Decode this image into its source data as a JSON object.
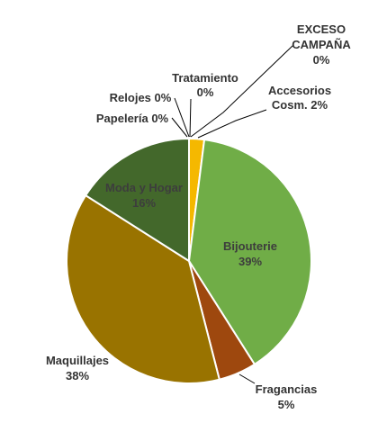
{
  "chart_data": {
    "type": "pie",
    "title": "",
    "start_angle_deg": 0,
    "direction": "clockwise",
    "slices": [
      {
        "key": "exceso",
        "lines": [
          "EXCESO",
          "CAMPAÑA",
          "0%"
        ],
        "value": 0.0,
        "color": "#c0c0c0"
      },
      {
        "key": "accesorios",
        "lines": [
          "Accesorios",
          "Cosm. 2%"
        ],
        "value": 2,
        "color": "#f5b800"
      },
      {
        "key": "bijouterie",
        "lines": [
          "Bijouterie",
          "39%"
        ],
        "value": 39,
        "color": "#70ad47"
      },
      {
        "key": "fragancias",
        "lines": [
          "Fragancias",
          "5%"
        ],
        "value": 5,
        "color": "#9e480e"
      },
      {
        "key": "maquillajes",
        "lines": [
          "Maquillajes",
          "38%"
        ],
        "value": 38,
        "color": "#997300"
      },
      {
        "key": "moda",
        "lines": [
          "Moda y Hogar",
          "16%"
        ],
        "value": 16,
        "color": "#43682b"
      },
      {
        "key": "papeleria",
        "lines": [
          "Papelería 0%"
        ],
        "value": 0.0,
        "color": "#c0c0c0"
      },
      {
        "key": "relojes",
        "lines": [
          "Relojes 0%"
        ],
        "value": 0.0,
        "color": "#c0c0c0"
      },
      {
        "key": "tratamiento",
        "lines": [
          "Tratamiento",
          "0%"
        ],
        "value": 0.0,
        "color": "#c0c0c0"
      }
    ]
  }
}
